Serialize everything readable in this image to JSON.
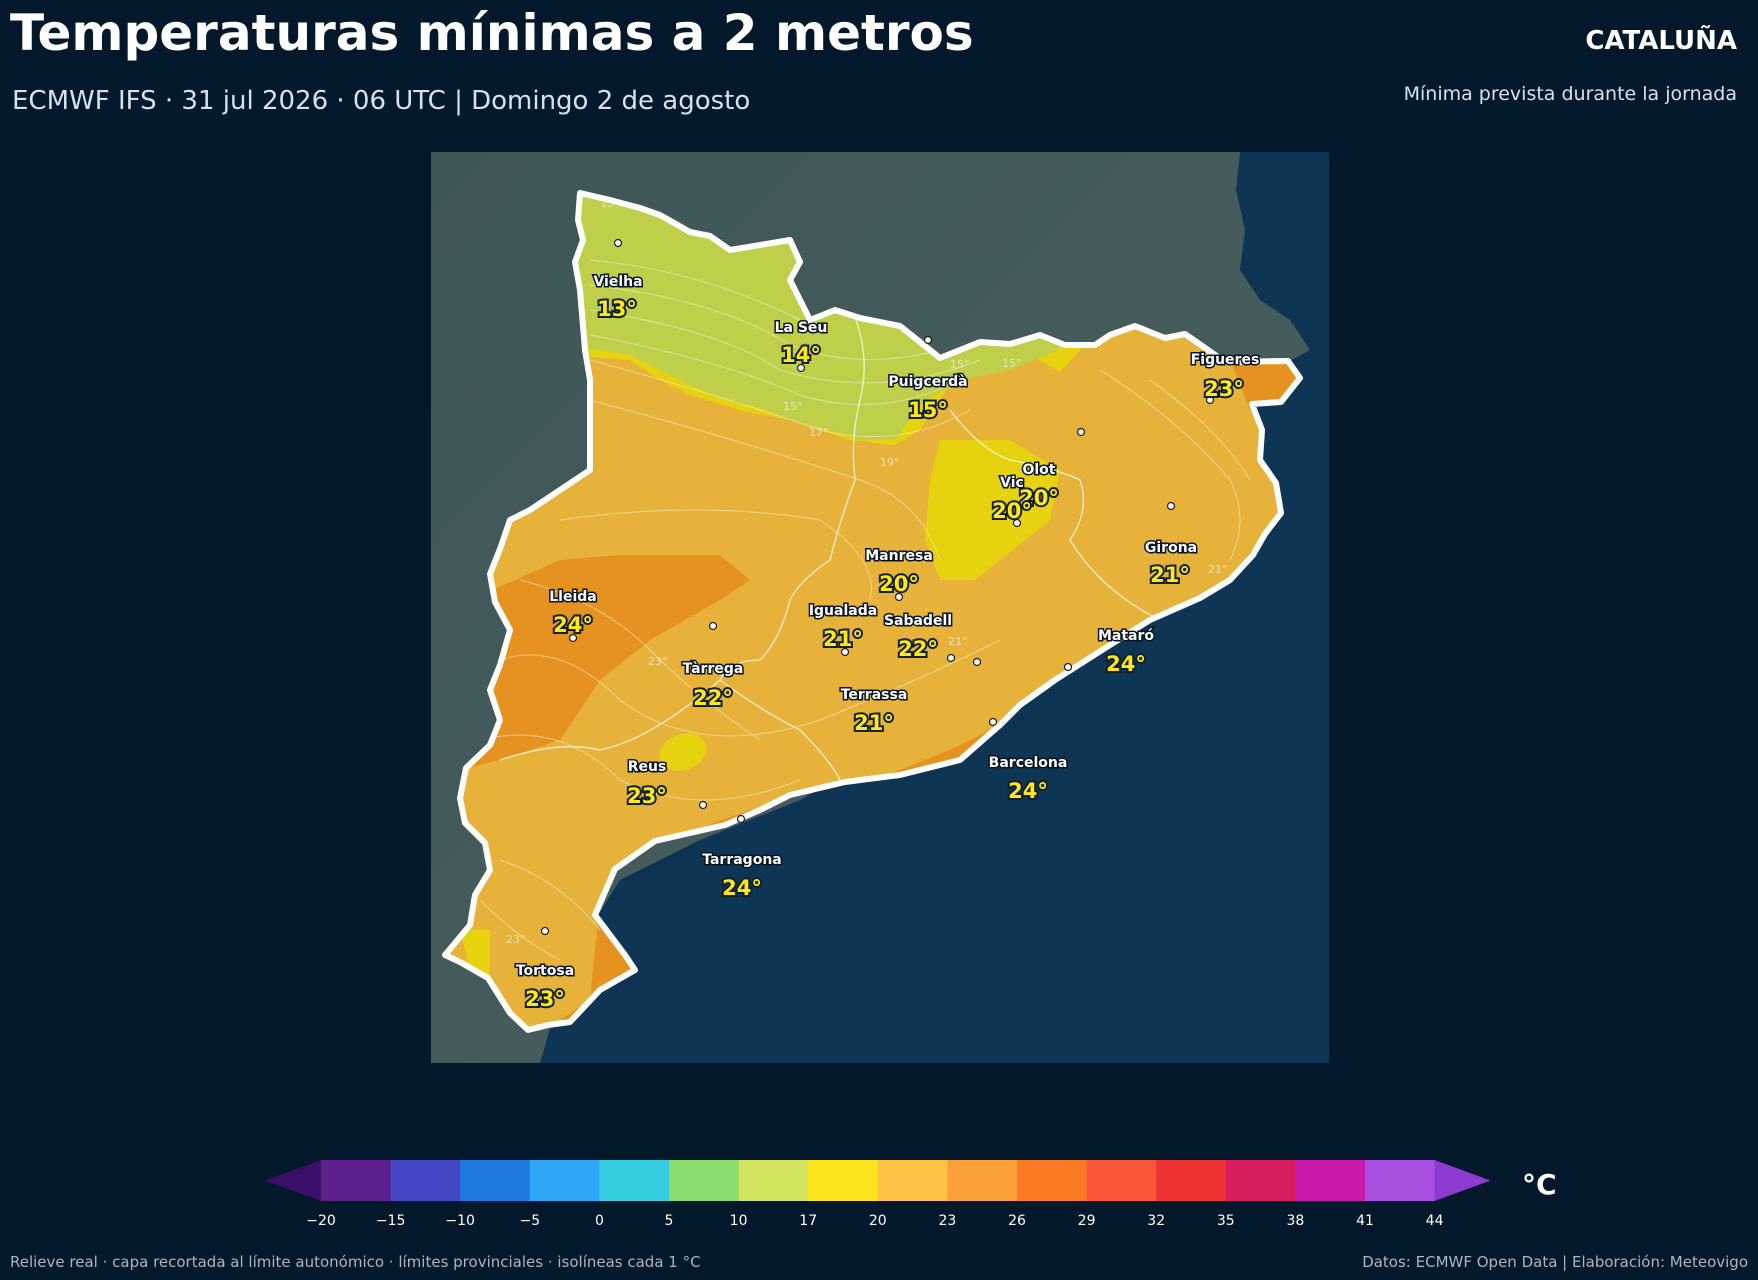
{
  "header": {
    "title": "Temperaturas mínimas a 2 metros",
    "subtitle": "ECMWF IFS · 31 jul 2026 · 06 UTC  |  Domingo 2 de agosto",
    "region": "CATALUÑA",
    "note": "Mínima prevista durante la jornada"
  },
  "map": {
    "cities": [
      {
        "name": "Vielha",
        "temp": "13°"
      },
      {
        "name": "La Seu",
        "temp": "14°"
      },
      {
        "name": "Puigcerdà",
        "temp": "15°"
      },
      {
        "name": "Figueres",
        "temp": "23°"
      },
      {
        "name": "Olot",
        "temp": "20°"
      },
      {
        "name": "Vic",
        "temp": "20°"
      },
      {
        "name": "Girona",
        "temp": "21°"
      },
      {
        "name": "Manresa",
        "temp": "20°"
      },
      {
        "name": "Lleida",
        "temp": "24°"
      },
      {
        "name": "Igualada",
        "temp": "21°"
      },
      {
        "name": "Sabadell",
        "temp": "22°"
      },
      {
        "name": "Mataró",
        "temp": "24°"
      },
      {
        "name": "Tàrrega",
        "temp": "22°"
      },
      {
        "name": "Terrassa",
        "temp": "21°"
      },
      {
        "name": "Reus",
        "temp": "23°"
      },
      {
        "name": "Barcelona",
        "temp": "24°"
      },
      {
        "name": "Tarragona",
        "temp": "24°"
      },
      {
        "name": "Tortosa",
        "temp": "23°"
      }
    ],
    "isolines": [
      "13°",
      "15°",
      "15°",
      "17°",
      "19°",
      "21°",
      "23°",
      "21°",
      "23°",
      "15°"
    ]
  },
  "colorbar": {
    "ticks": [
      "−20",
      "−15",
      "−10",
      "−5",
      "0",
      "5",
      "10",
      "17",
      "20",
      "23",
      "26",
      "29",
      "32",
      "35",
      "38",
      "41",
      "44"
    ],
    "colors": [
      "#5c1f8c",
      "#4547c4",
      "#1f7ae0",
      "#2ea5f5",
      "#35cde0",
      "#8adc6e",
      "#d3e360",
      "#fde61c",
      "#fdc244",
      "#fca13a",
      "#fc7a23",
      "#fb5537",
      "#ef3333",
      "#d81d5e",
      "#ca1aab",
      "#a64fe0"
    ],
    "low_color": "#3a0f6a",
    "high_color": "#8e3ad0",
    "unit": "°C"
  },
  "footer": {
    "left": "Relieve real · capa recortada al límite autonómico · límites provinciales · isolíneas cada 1 °C",
    "right": "Datos: ECMWF Open Data | Elaboración: Meteovigo"
  }
}
